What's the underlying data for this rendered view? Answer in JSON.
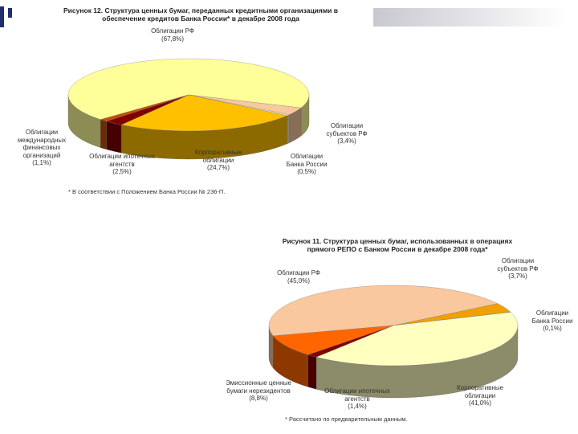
{
  "chart_data": [
    {
      "type": "pie",
      "title": "Рисунок 12. Структура ценных бумаг, переданных кредитными организациями в обеспечение кредитов Банка России* в декабре 2008 года",
      "categories": [
        "Облигации РФ",
        "Облигации субъектов РФ",
        "Облигации Банка России",
        "Корпоративные облигации",
        "Облигации ипотечных агентств",
        "Облигации международных финансовых организаций"
      ],
      "values": [
        67.8,
        3.4,
        0.5,
        24.7,
        2.5,
        1.1
      ],
      "value_labels": [
        "(67,8%)",
        "(3,4%)",
        "(0,5%)",
        "(24,7%)",
        "(2,5%)",
        "(1,1%)"
      ],
      "colors": [
        "#ffff99",
        "#f9c89e",
        "#eeeecc",
        "#ffc000",
        "#800000",
        "#c05000"
      ],
      "footnote": "* В соответствии с Положением Банка России № 236-П."
    },
    {
      "type": "pie",
      "title": "Рисунок 11. Структура ценных бумаг, использованных в операциях прямого РЕПО с Банком России в декабре 2008 года*",
      "categories": [
        "Облигации РФ",
        "Облигации субъектов РФ",
        "Облигации Банка России",
        "Корпоративные облигации",
        "Облигации ипотечных агентств",
        "Эмиссионные ценные бумаги нерезидентов"
      ],
      "values": [
        45.0,
        3.7,
        0.1,
        41.0,
        1.4,
        8.8
      ],
      "value_labels": [
        "(45,0%)",
        "(3,7%)",
        "(0,1%)",
        "(41,0%)",
        "(1,4%)",
        "(8,8%)"
      ],
      "colors": [
        "#f9c89e",
        "#f0a000",
        "#ffffcc",
        "#ffffc0",
        "#800000",
        "#ff6600"
      ],
      "footnote": "* Рассчитано по предварительным данным."
    }
  ]
}
